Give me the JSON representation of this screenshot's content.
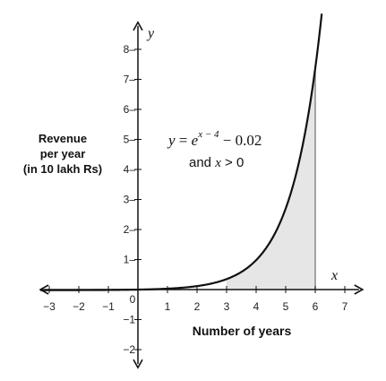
{
  "chart_data": {
    "type": "area",
    "title": "",
    "x_axis_symbol": "x",
    "y_axis_symbol": "y",
    "xlabel": "Number of years",
    "ylabel": [
      "Revenue",
      "per year",
      "(in 10 lakh Rs)"
    ],
    "x_ticks": [
      -3,
      -2,
      -1,
      0,
      1,
      2,
      3,
      4,
      5,
      6,
      7
    ],
    "y_ticks": [
      -2,
      -1,
      1,
      2,
      3,
      4,
      5,
      6,
      7,
      8
    ],
    "x_tick_labels": [
      "−3",
      "−2",
      "−1",
      "0",
      "1",
      "2",
      "3",
      "4",
      "5",
      "6",
      "7"
    ],
    "y_tick_labels": [
      "−2",
      "−1",
      "1–",
      "2–",
      "3–",
      "4–",
      "5–",
      "6–",
      "7–",
      "8–"
    ],
    "xlim": [
      -3.3,
      7.6
    ],
    "ylim": [
      -2.6,
      8.9
    ],
    "grid": false,
    "series": [
      {
        "function": "y = e^(x-4) - 0.02",
        "x_domain": [
          -3.3,
          6.22
        ],
        "x": [
          -3,
          -2,
          -1,
          0,
          1,
          2,
          3,
          4,
          5,
          6
        ],
        "y": [
          -0.019,
          -0.018,
          -0.013,
          0.0,
          0.03,
          0.115,
          0.348,
          0.98,
          2.698,
          7.369
        ]
      }
    ],
    "shaded_region": {
      "x_from": 3,
      "x_to": 6,
      "bounded_by": "curve and x-axis"
    },
    "annotation": {
      "eq_lhs": "y",
      "eq_eq": " = ",
      "eq_base": "e",
      "eq_exp": "x − 4",
      "eq_rest": " − 0.02",
      "cond_prefix": "and ",
      "cond_var": "x",
      "cond_suffix": " > 0"
    },
    "colors": {
      "curve": "#111111",
      "shade": "#e6e6e6",
      "shade_edge": "#8a8a8a",
      "axes": "#111111"
    }
  }
}
